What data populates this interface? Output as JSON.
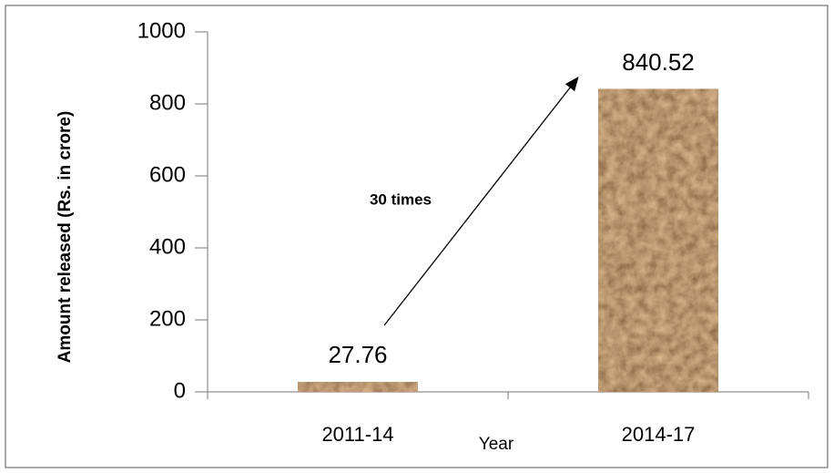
{
  "chart_data": {
    "type": "bar",
    "categories": [
      "2011-14",
      "2014-17"
    ],
    "values": [
      27.76,
      840.52
    ],
    "color": "#7a4a26",
    "ylim": [
      0,
      1000
    ],
    "yticks": [
      0,
      200,
      400,
      600,
      800,
      1000
    ],
    "y_label": "Amount released (Rs. in crore)",
    "x_label": "Year",
    "annotation": "30 times",
    "grid": false
  }
}
